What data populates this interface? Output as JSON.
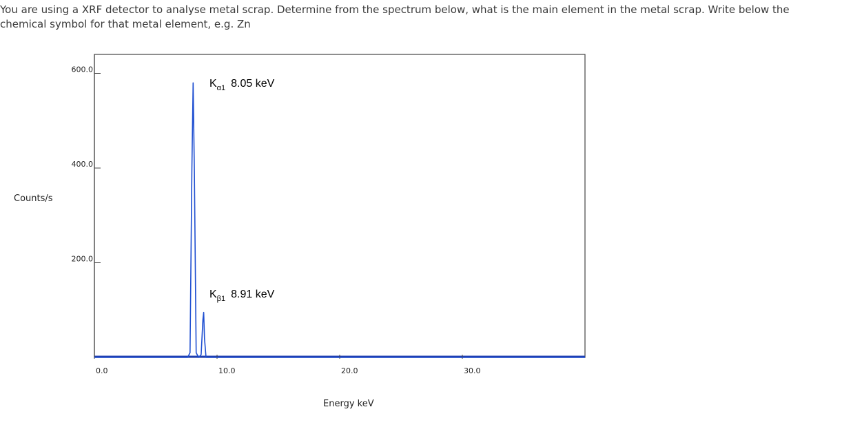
{
  "question": {
    "text": "You are using a XRF detector to analyse metal scrap. Determine from the spectrum below, what is the main element in the metal scrap. Write below the chemical symbol for that metal element, e.g. Zn"
  },
  "chart_data": {
    "type": "line",
    "xlabel": "Energy keV",
    "ylabel": "Counts/s",
    "xlim": [
      0,
      40
    ],
    "ylim": [
      0,
      640
    ],
    "xticks": [
      0,
      10,
      20,
      30
    ],
    "xtick_labels": [
      "0.0",
      "10.0",
      "20.0",
      "30.0"
    ],
    "yticks": [
      200,
      400,
      600
    ],
    "ytick_labels": [
      "200.0",
      "400.0",
      "600.0"
    ],
    "grid": false,
    "legend": "none",
    "line_color": "#1f4fd1",
    "peaks": [
      {
        "energy": 8.05,
        "counts": 580,
        "label_main": "K",
        "label_sub": "α1",
        "label_value": "8.05 keV"
      },
      {
        "energy": 8.91,
        "counts": 95,
        "label_main": "K",
        "label_sub": "β1",
        "label_value": "8.91 keV"
      }
    ],
    "series": [
      {
        "x": [
          0,
          7.6,
          7.8,
          7.95,
          8.05,
          8.15,
          8.3,
          8.5,
          8.7,
          8.85,
          8.91,
          8.98,
          9.1,
          9.4,
          40
        ],
        "y": [
          0,
          0,
          10,
          400,
          580,
          390,
          10,
          0,
          6,
          80,
          95,
          40,
          0,
          0,
          0
        ]
      }
    ]
  }
}
